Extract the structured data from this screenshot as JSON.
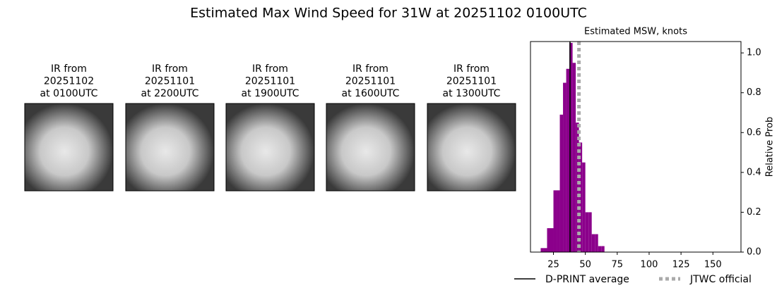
{
  "title": "Estimated Max Wind Speed for 31W at 20251102 0100UTC",
  "images": [
    {
      "label": [
        "IR from",
        "20251102",
        "at 0100UTC"
      ]
    },
    {
      "label": [
        "IR from",
        "20251101",
        "at 2200UTC"
      ]
    },
    {
      "label": [
        "IR from",
        "20251101",
        "at 1900UTC"
      ]
    },
    {
      "label": [
        "IR from",
        "20251101",
        "at 1600UTC"
      ]
    },
    {
      "label": [
        "IR from",
        "20251101",
        "at 1300UTC"
      ]
    }
  ],
  "chart_data": {
    "type": "histogram",
    "title": "Estimated MSW, knots",
    "ylabel": "Relative Prob",
    "bins": [
      15,
      17.5,
      20,
      22.5,
      25,
      27.5,
      30,
      32.5,
      35,
      37.5,
      40,
      42.5,
      45,
      47.5,
      50,
      52.5,
      55,
      57.5,
      60,
      62.5,
      65
    ],
    "values": [
      0.02,
      0.02,
      0.12,
      0.12,
      0.31,
      0.31,
      0.69,
      0.85,
      0.92,
      1.05,
      0.95,
      0.65,
      0.55,
      0.45,
      0.2,
      0.2,
      0.09,
      0.09,
      0.03,
      0.03
    ],
    "color": "#8b008b",
    "xlim": [
      7,
      172
    ],
    "xticks": [
      25,
      50,
      75,
      100,
      125,
      150
    ],
    "ylim": [
      0,
      1.057
    ],
    "yticks": [
      {
        "value": 0,
        "label": "0.0"
      },
      0.2,
      0.4,
      0.6,
      0.8,
      {
        "value": 1,
        "label": "1.0"
      }
    ],
    "lines": [
      {
        "name": "D-PRINT average",
        "value": 38,
        "color": "#000000",
        "style": "solid"
      },
      {
        "name": "JTWC official",
        "value": 45,
        "color": "#aaaaaa",
        "style": "dotted"
      }
    ]
  }
}
